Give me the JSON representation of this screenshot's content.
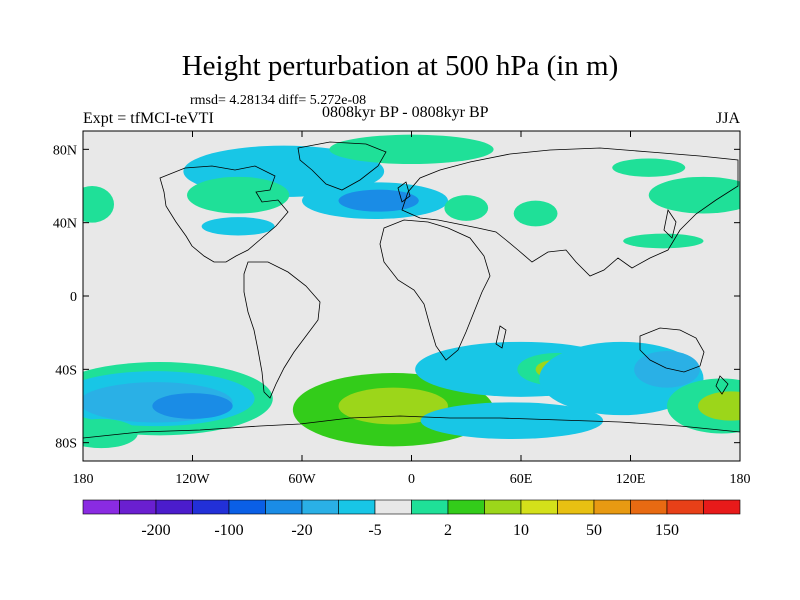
{
  "title": "Height perturbation at 500 hPa (in m)",
  "stats": "rmsd= 4.28134 diff= 5.272e-08",
  "experiment": "Expt = tfMCI-teVTI",
  "period": "0808kyr BP - 0808kyr BP",
  "season": "JJA",
  "axes": {
    "lat_labels": [
      {
        "value": 80,
        "label": "80N"
      },
      {
        "value": 40,
        "label": "40N"
      },
      {
        "value": 0,
        "label": "0"
      },
      {
        "value": -40,
        "label": "40S"
      },
      {
        "value": -80,
        "label": "80S"
      }
    ],
    "lon_labels": [
      {
        "value": -180,
        "label": "180"
      },
      {
        "value": -120,
        "label": "120W"
      },
      {
        "value": -60,
        "label": "60W"
      },
      {
        "value": 0,
        "label": "0"
      },
      {
        "value": 60,
        "label": "60E"
      },
      {
        "value": 120,
        "label": "120E"
      },
      {
        "value": 180,
        "label": "180"
      }
    ],
    "lat_range": [
      -90,
      90
    ],
    "lon_range": [
      -180,
      180
    ]
  },
  "colorbar": {
    "colors": [
      "#8a2be2",
      "#6a1fd0",
      "#4b1ccc",
      "#2230d8",
      "#0a5fe6",
      "#1a8ce6",
      "#2ab0e6",
      "#18c6e6",
      "#e8e8e8",
      "#1fe098",
      "#33cc1a",
      "#9cd61a",
      "#d4e01a",
      "#e8c012",
      "#e89a12",
      "#e86a12",
      "#e84018",
      "#e81a1a"
    ],
    "labels": [
      {
        "after_index": 1,
        "text": "-200"
      },
      {
        "after_index": 3,
        "text": "-100"
      },
      {
        "after_index": 5,
        "text": "-20"
      },
      {
        "after_index": 7,
        "text": "-5"
      },
      {
        "after_index": 9,
        "text": "2"
      },
      {
        "after_index": 11,
        "text": "10"
      },
      {
        "after_index": 13,
        "text": "50"
      },
      {
        "after_index": 15,
        "text": "150"
      }
    ]
  },
  "anomaly_regions": [
    {
      "lon": -70,
      "lat": 68,
      "rx": 55,
      "ry": 14,
      "level": 7
    },
    {
      "lon": 0,
      "lat": 80,
      "rx": 45,
      "ry": 8,
      "level": 9
    },
    {
      "lon": -20,
      "lat": 52,
      "rx": 40,
      "ry": 10,
      "level": 7
    },
    {
      "lon": -18,
      "lat": 52,
      "rx": 22,
      "ry": 6,
      "level": 5
    },
    {
      "lon": -95,
      "lat": 55,
      "rx": 28,
      "ry": 10,
      "level": 9
    },
    {
      "lon": -175,
      "lat": 50,
      "rx": 12,
      "ry": 10,
      "level": 9
    },
    {
      "lon": -95,
      "lat": 38,
      "rx": 20,
      "ry": 5,
      "level": 7
    },
    {
      "lon": 30,
      "lat": 48,
      "rx": 12,
      "ry": 7,
      "level": 9
    },
    {
      "lon": 68,
      "lat": 45,
      "rx": 12,
      "ry": 7,
      "level": 9
    },
    {
      "lon": 160,
      "lat": 55,
      "rx": 30,
      "ry": 10,
      "level": 9
    },
    {
      "lon": 130,
      "lat": 70,
      "rx": 20,
      "ry": 5,
      "level": 9
    },
    {
      "lon": 138,
      "lat": 30,
      "rx": 22,
      "ry": 4,
      "level": 9
    },
    {
      "lon": -138,
      "lat": -56,
      "rx": 62,
      "ry": 20,
      "level": 9
    },
    {
      "lon": -140,
      "lat": -56,
      "rx": 54,
      "ry": 15,
      "level": 7
    },
    {
      "lon": -140,
      "lat": -58,
      "rx": 42,
      "ry": 11,
      "level": 6
    },
    {
      "lon": -120,
      "lat": -60,
      "rx": 22,
      "ry": 7,
      "level": 5
    },
    {
      "lon": -10,
      "lat": -62,
      "rx": 55,
      "ry": 20,
      "level": 10
    },
    {
      "lon": -10,
      "lat": -60,
      "rx": 30,
      "ry": 10,
      "level": 11
    },
    {
      "lon": 60,
      "lat": -40,
      "rx": 58,
      "ry": 15,
      "level": 7
    },
    {
      "lon": 80,
      "lat": -40,
      "rx": 22,
      "ry": 9,
      "level": 9
    },
    {
      "lon": 78,
      "lat": -40,
      "rx": 10,
      "ry": 5,
      "level": 11
    },
    {
      "lon": 115,
      "lat": -45,
      "rx": 45,
      "ry": 20,
      "level": 7
    },
    {
      "lon": 140,
      "lat": -40,
      "rx": 18,
      "ry": 10,
      "level": 6
    },
    {
      "lon": 170,
      "lat": -60,
      "rx": 30,
      "ry": 15,
      "level": 9
    },
    {
      "lon": 175,
      "lat": -60,
      "rx": 18,
      "ry": 8,
      "level": 11
    },
    {
      "lon": 55,
      "lat": -68,
      "rx": 50,
      "ry": 10,
      "level": 7
    },
    {
      "lon": -170,
      "lat": -75,
      "rx": 20,
      "ry": 8,
      "level": 9
    }
  ]
}
